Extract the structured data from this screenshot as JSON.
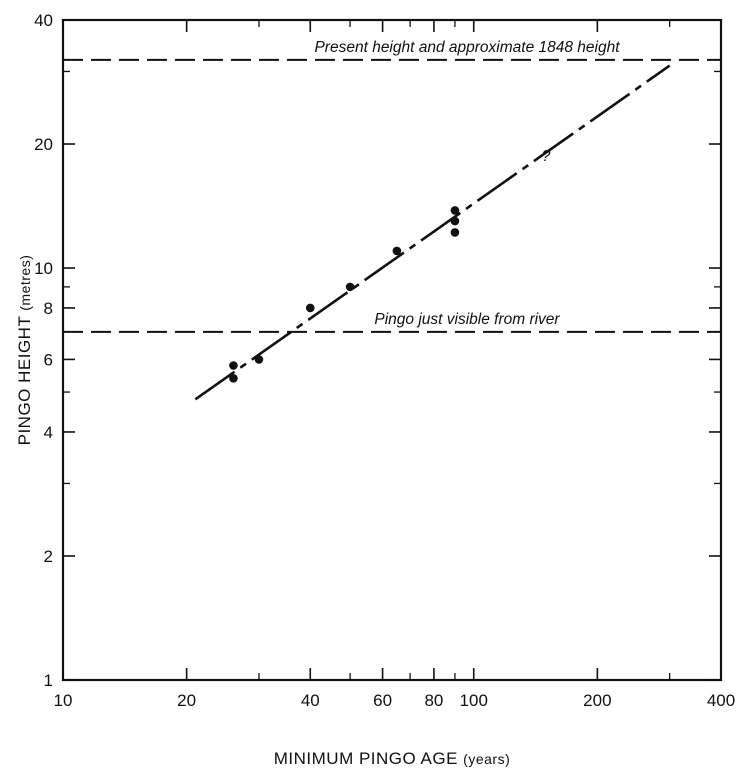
{
  "chart_data": {
    "type": "scatter",
    "title": "",
    "xlabel": "MINIMUM PINGO AGE",
    "xunit": "(years)",
    "ylabel": "PINGO HEIGHT",
    "yunit": "(metres)",
    "xscale": "log",
    "yscale": "log",
    "xlim": [
      10,
      400
    ],
    "ylim": [
      1,
      40
    ],
    "x_ticks": [
      10,
      20,
      40,
      60,
      80,
      100,
      200,
      400
    ],
    "y_ticks": [
      1,
      2,
      4,
      6,
      8,
      10,
      20,
      40
    ],
    "x_minor_ticks": [
      30,
      50,
      70,
      90,
      300
    ],
    "y_minor_ticks": [
      3,
      5,
      7,
      9,
      30
    ],
    "grid": false,
    "points": [
      {
        "x": 26,
        "y": 5.8
      },
      {
        "x": 26,
        "y": 5.4
      },
      {
        "x": 30,
        "y": 6.0
      },
      {
        "x": 40,
        "y": 8.0
      },
      {
        "x": 50,
        "y": 9.0
      },
      {
        "x": 65,
        "y": 11.0
      },
      {
        "x": 90,
        "y": 12.2
      },
      {
        "x": 90,
        "y": 13.0
      },
      {
        "x": 90,
        "y": 13.8
      }
    ],
    "trend_line": {
      "from": {
        "x": 21,
        "y": 4.8
      },
      "to": {
        "x": 300,
        "y": 31
      }
    },
    "reference_lines": [
      {
        "y": 32,
        "label": "Present height and approximate 1848 height"
      },
      {
        "y": 7.0,
        "label": "Pingo just visible from river"
      }
    ],
    "annotations": [
      {
        "text": "?",
        "x": 150,
        "y": 19
      }
    ]
  }
}
